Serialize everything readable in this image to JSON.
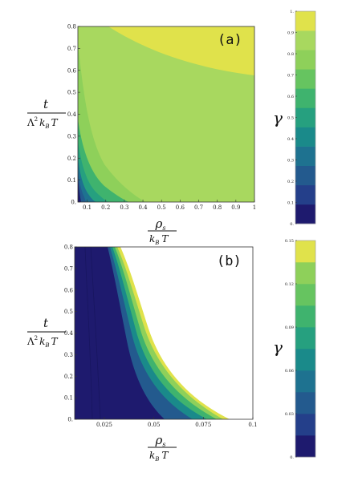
{
  "chart_data": [
    {
      "type": "heatmap",
      "panel_label": "(a)",
      "xlabel_num": "ρ",
      "xlabel_num_sub": "s",
      "xlabel_den": "k",
      "xlabel_den_sub": "B",
      "xlabel_den_var": "T",
      "ylabel_num": "t",
      "ylabel_den": "Λ",
      "ylabel_den_sup": "2",
      "ylabel_den_k": "k",
      "ylabel_den_sub": "B",
      "ylabel_den_var": "T",
      "xlim": [
        0.05,
        1.0
      ],
      "ylim": [
        0.0,
        0.8
      ],
      "xticks": [
        "0.1",
        "0.2",
        "0.3",
        "0.4",
        "0.5",
        "0.6",
        "0.7",
        "0.8",
        "0.9",
        "1"
      ],
      "yticks": [
        "0.",
        "0.1",
        "0.2",
        "0.3",
        "0.4",
        "0.5",
        "0.6",
        "0.7",
        "0.8"
      ],
      "colorbar_label": "γ",
      "colorbar_ticks": [
        "0.",
        "0.1",
        "0.2",
        "0.3",
        "0.4",
        "0.5",
        "0.6",
        "0.7",
        "0.8",
        "0.9",
        "1."
      ],
      "colorbar_range": [
        0,
        1.0
      ],
      "colors": [
        "#1e1a6e",
        "#243f8a",
        "#235a8e",
        "#1e7290",
        "#1a8a8a",
        "#26a07f",
        "#3fb36e",
        "#66c460",
        "#8ed05a",
        "#a8d85f",
        "#e0e24b"
      ]
    },
    {
      "type": "heatmap",
      "panel_label": "(b)",
      "xlabel_num": "ρ",
      "xlabel_num_sub": "s",
      "xlabel_den": "k",
      "xlabel_den_sub": "B",
      "xlabel_den_var": "T",
      "ylabel_num": "t",
      "ylabel_den": "Λ",
      "ylabel_den_sup": "2",
      "ylabel_den_k": "k",
      "ylabel_den_sub": "B",
      "ylabel_den_var": "T",
      "xlim": [
        0.01,
        0.1
      ],
      "ylim": [
        0.0,
        0.8
      ],
      "xticks": [
        "0.025",
        "0.05",
        "0.075",
        "0.1"
      ],
      "yticks": [
        "0.",
        "0.1",
        "0.2",
        "0.3",
        "0.4",
        "0.5",
        "0.6",
        "0.7",
        "0.8"
      ],
      "colorbar_label": "γ",
      "colorbar_ticks": [
        "0.",
        "0.03",
        "0.06",
        "0.09",
        "0.12",
        "0.15"
      ],
      "colorbar_range": [
        0,
        0.15
      ],
      "colors": [
        "#1e1a6e",
        "#243f8a",
        "#235a8e",
        "#1e7290",
        "#1a8a8a",
        "#26a07f",
        "#3fb36e",
        "#66c460",
        "#8ed05a",
        "#e0e24b"
      ]
    }
  ]
}
